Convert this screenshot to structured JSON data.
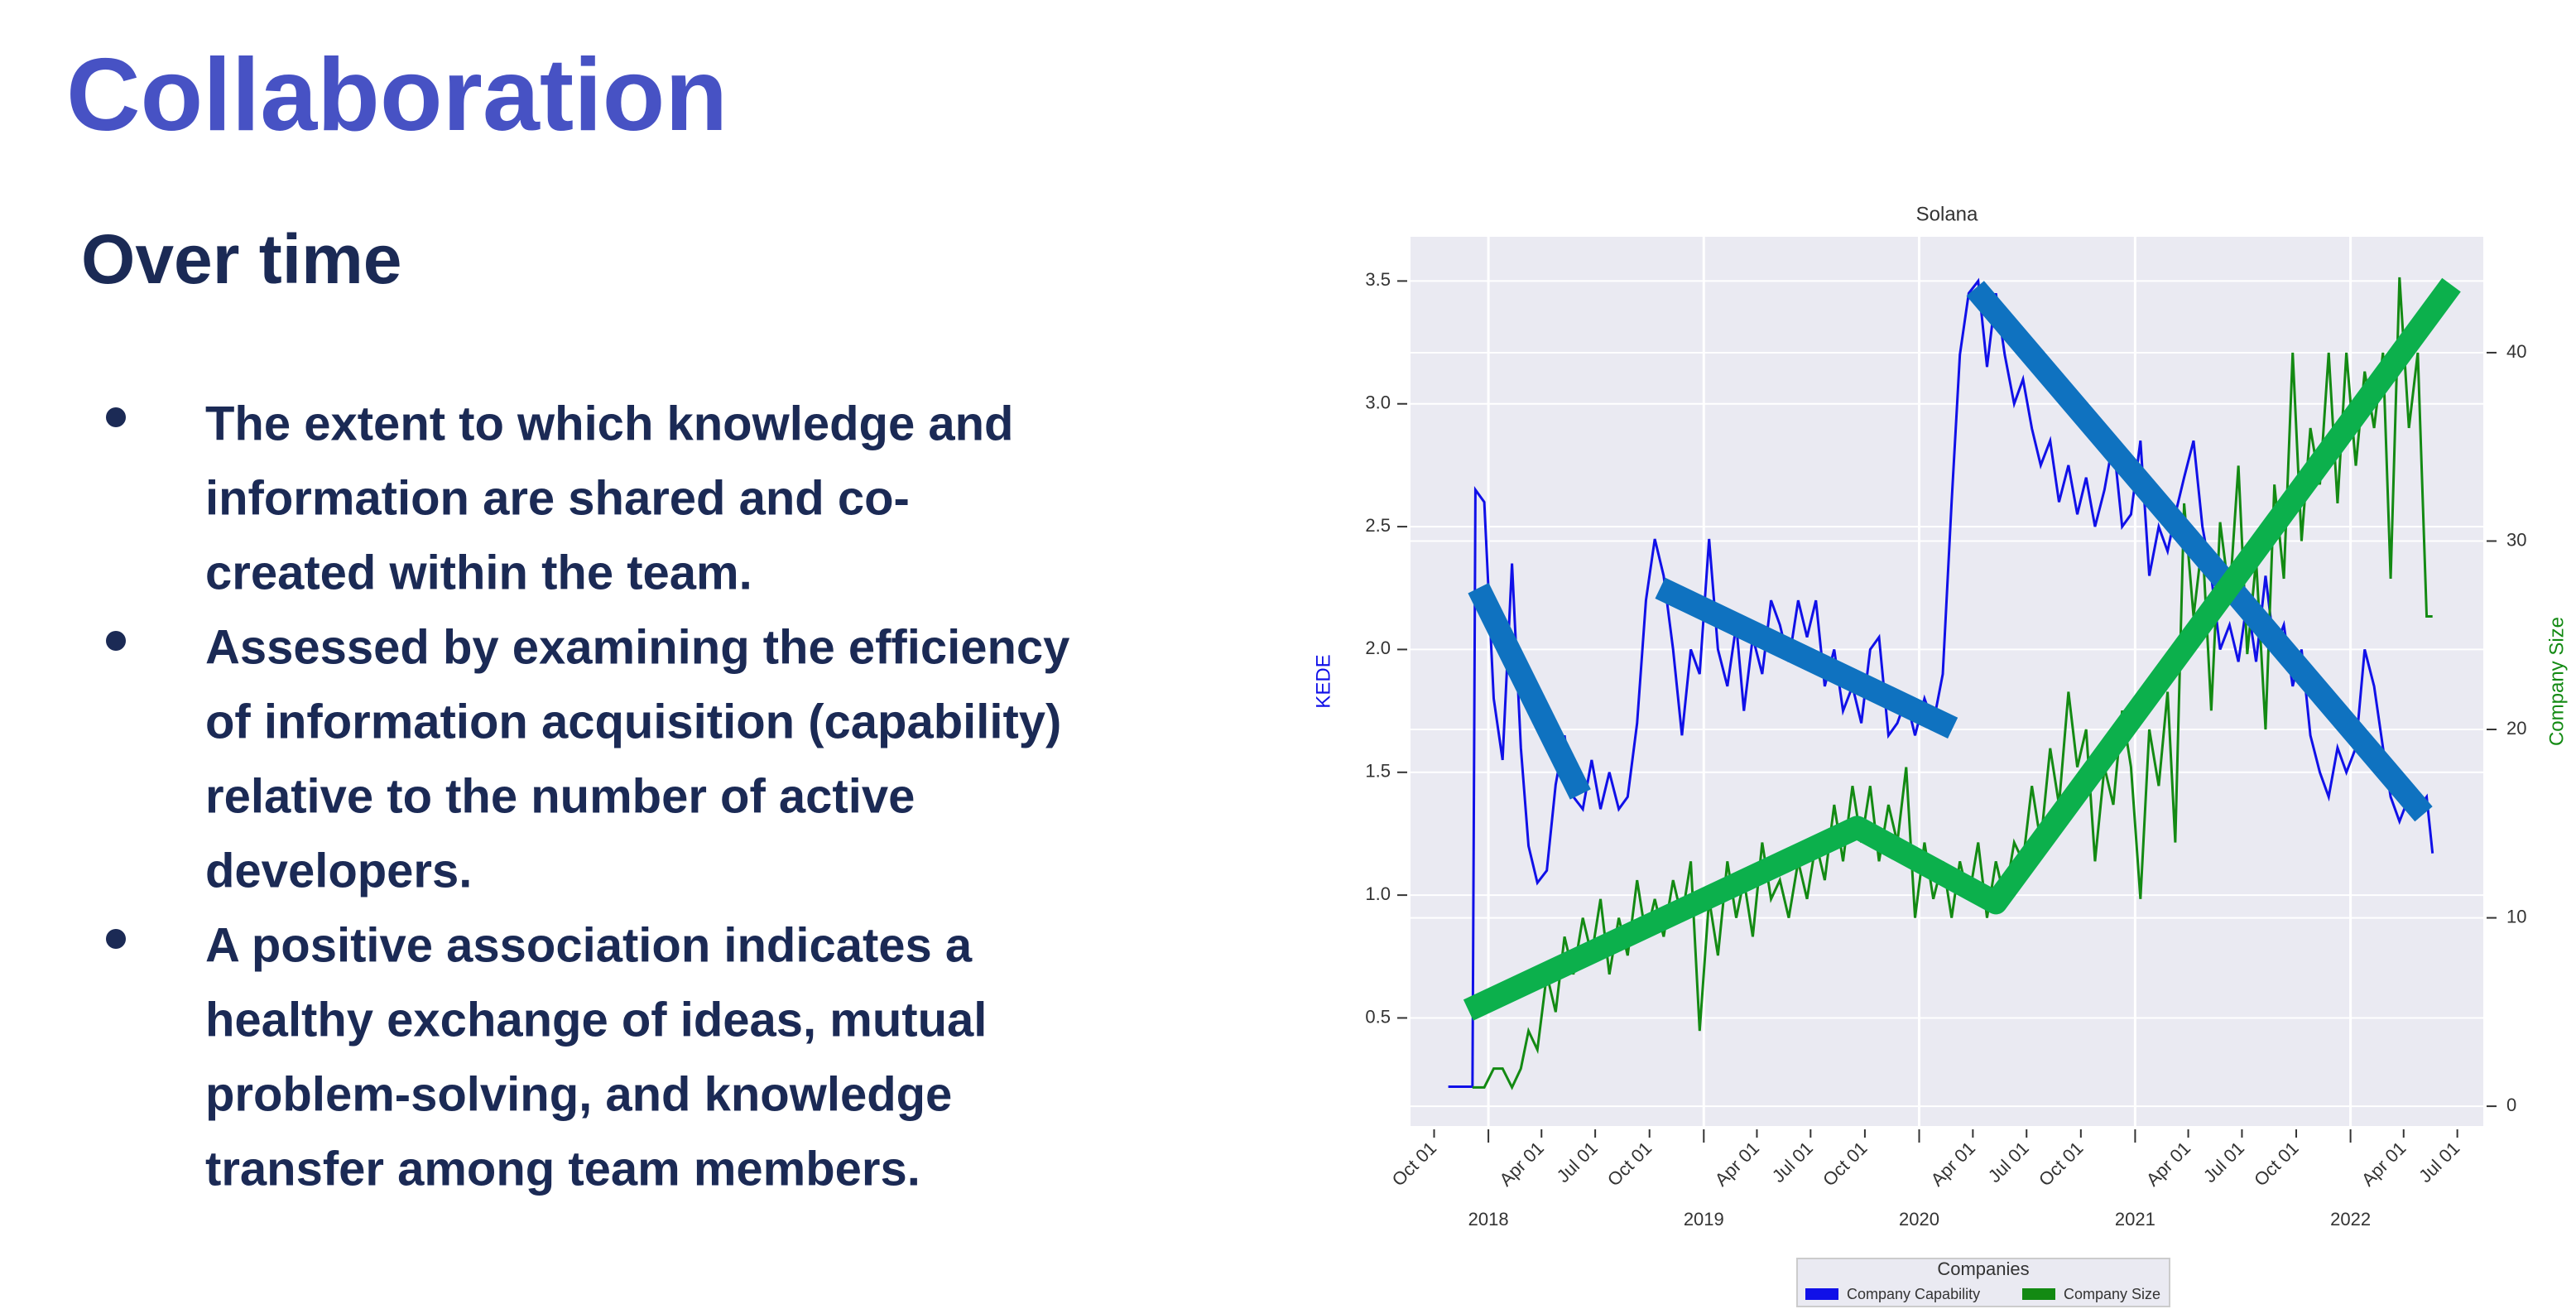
{
  "title": "Collaboration",
  "subtitle": "Over time",
  "bullets": [
    [
      "The extent to which knowledge and",
      "information are shared and co-",
      "created within the team."
    ],
    [
      "Assessed by examining the efficiency",
      "of information acquisition (capability)",
      "relative to the number of active",
      "developers."
    ],
    [
      "A positive association indicates a",
      "healthy exchange of ideas, mutual",
      "problem-solving, and knowledge",
      "transfer among team members."
    ]
  ],
  "chart_data": {
    "type": "line",
    "title": "Solana",
    "ylabel": "KEDE",
    "y2label": "Company Size",
    "xlim": [
      "2017-08-22",
      "2022-08-14"
    ],
    "ylim": [
      0.06,
      3.68
    ],
    "y2lim": [
      -1.05,
      46.15
    ],
    "yticks": [
      0.5,
      {
        "value": 1,
        "label": "1.0"
      },
      1.5,
      {
        "value": 2,
        "label": "2.0"
      },
      2.5,
      {
        "value": 3,
        "label": "3.0"
      },
      3.5
    ],
    "y2ticks": [
      0,
      10,
      20,
      30,
      40
    ],
    "xticks": [
      {
        "value": "2017-10-01",
        "label": "Oct 01"
      },
      {
        "value": "2018-04-01",
        "label": "Apr 01"
      },
      {
        "value": "2018-07-01",
        "label": "Jul 01"
      },
      {
        "value": "2018-10-01",
        "label": "Oct 01"
      },
      {
        "value": "2019-04-01",
        "label": "Apr 01"
      },
      {
        "value": "2019-07-01",
        "label": "Jul 01"
      },
      {
        "value": "2019-10-01",
        "label": "Oct 01"
      },
      {
        "value": "2020-04-01",
        "label": "Apr 01"
      },
      {
        "value": "2020-07-01",
        "label": "Jul 01"
      },
      {
        "value": "2020-10-01",
        "label": "Oct 01"
      },
      {
        "value": "2021-04-01",
        "label": "Apr 01"
      },
      {
        "value": "2021-07-01",
        "label": "Jul 01"
      },
      {
        "value": "2021-10-01",
        "label": "Oct 01"
      },
      {
        "value": "2022-04-01",
        "label": "Apr 01"
      },
      {
        "value": "2022-07-01",
        "label": "Jul 01"
      }
    ],
    "xticks_year": [
      {
        "value": "2018-01-01",
        "label": "2018"
      },
      {
        "value": "2019-01-01",
        "label": "2019"
      },
      {
        "value": "2020-01-01",
        "label": "2020"
      },
      {
        "value": "2021-01-01",
        "label": "2021"
      },
      {
        "value": "2022-01-01",
        "label": "2022"
      }
    ],
    "grid": true,
    "legend": "lower center",
    "legend_title": "Companies",
    "x": [
      "2017-10-25",
      "2017-12-05",
      "2017-12-10",
      "2017-12-25",
      "2018-01-10",
      "2018-01-25",
      "2018-02-10",
      "2018-02-25",
      "2018-03-10",
      "2018-03-25",
      "2018-04-10",
      "2018-04-25",
      "2018-05-10",
      "2018-05-25",
      "2018-06-10",
      "2018-06-25",
      "2018-07-10",
      "2018-07-25",
      "2018-08-10",
      "2018-08-25",
      "2018-09-10",
      "2018-09-25",
      "2018-10-10",
      "2018-10-25",
      "2018-11-10",
      "2018-11-25",
      "2018-12-10",
      "2018-12-25",
      "2019-01-10",
      "2019-01-25",
      "2019-02-10",
      "2019-02-25",
      "2019-03-10",
      "2019-03-25",
      "2019-04-10",
      "2019-04-25",
      "2019-05-10",
      "2019-05-25",
      "2019-06-10",
      "2019-06-25",
      "2019-07-10",
      "2019-07-25",
      "2019-08-10",
      "2019-08-25",
      "2019-09-10",
      "2019-09-25",
      "2019-10-10",
      "2019-10-25",
      "2019-11-10",
      "2019-11-25",
      "2019-12-10",
      "2019-12-25",
      "2020-01-10",
      "2020-01-25",
      "2020-02-10",
      "2020-02-25",
      "2020-03-10",
      "2020-03-25",
      "2020-04-10",
      "2020-04-25",
      "2020-05-10",
      "2020-05-25",
      "2020-06-10",
      "2020-06-25",
      "2020-07-10",
      "2020-07-25",
      "2020-08-10",
      "2020-08-25",
      "2020-09-10",
      "2020-09-25",
      "2020-10-10",
      "2020-10-25",
      "2020-11-10",
      "2020-11-25",
      "2020-12-10",
      "2020-12-25",
      "2021-01-10",
      "2021-01-25",
      "2021-02-10",
      "2021-02-25",
      "2021-03-10",
      "2021-03-25",
      "2021-04-10",
      "2021-04-25",
      "2021-05-10",
      "2021-05-25",
      "2021-06-10",
      "2021-06-25",
      "2021-07-10",
      "2021-07-25",
      "2021-08-10",
      "2021-08-25",
      "2021-09-10",
      "2021-09-25",
      "2021-10-10",
      "2021-10-25",
      "2021-11-10",
      "2021-11-25",
      "2021-12-10",
      "2021-12-25",
      "2022-01-10",
      "2022-01-25",
      "2022-02-10",
      "2022-02-25",
      "2022-03-10",
      "2022-03-25",
      "2022-04-10",
      "2022-04-25",
      "2022-05-10",
      "2022-05-20"
    ],
    "series": [
      {
        "name": "Company Capability",
        "color": "#1010e8",
        "values": [
          0.22,
          0.22,
          2.65,
          2.6,
          1.8,
          1.55,
          2.35,
          1.6,
          1.2,
          1.05,
          1.1,
          1.45,
          1.65,
          1.4,
          1.35,
          1.55,
          1.35,
          1.5,
          1.35,
          1.4,
          1.7,
          2.2,
          2.45,
          2.3,
          2.0,
          1.65,
          2.0,
          1.9,
          2.45,
          2.0,
          1.85,
          2.1,
          1.75,
          2.05,
          1.9,
          2.2,
          2.1,
          1.95,
          2.2,
          2.05,
          2.2,
          1.85,
          2.0,
          1.75,
          1.85,
          1.7,
          2.0,
          2.05,
          1.65,
          1.7,
          1.8,
          1.65,
          1.8,
          1.7,
          1.9,
          2.6,
          3.2,
          3.45,
          3.5,
          3.15,
          3.45,
          3.2,
          3.0,
          3.1,
          2.9,
          2.75,
          2.85,
          2.6,
          2.75,
          2.55,
          2.7,
          2.5,
          2.65,
          2.85,
          2.5,
          2.55,
          2.85,
          2.3,
          2.5,
          2.4,
          2.55,
          2.7,
          2.85,
          2.5,
          2.3,
          2.0,
          2.1,
          1.95,
          2.2,
          1.95,
          2.3,
          2.0,
          2.1,
          1.85,
          2.0,
          1.65,
          1.5,
          1.4,
          1.6,
          1.5,
          1.6,
          2.0,
          1.85,
          1.6,
          1.4,
          1.3,
          1.4,
          1.35,
          1.4,
          1.17
        ]
      },
      {
        "name": "Company Size",
        "color": "#138a13",
        "axis": "y2",
        "values": [
          null,
          1,
          1,
          1,
          2,
          2,
          1,
          2,
          4,
          3,
          7,
          5,
          9,
          7,
          10,
          8,
          11,
          7,
          10,
          8,
          12,
          9,
          11,
          9,
          12,
          10,
          13,
          4,
          11,
          8,
          13,
          10,
          12,
          9,
          14,
          11,
          12,
          10,
          13,
          11,
          14,
          12,
          16,
          13,
          17,
          14,
          17,
          13,
          16,
          14,
          18,
          10,
          14,
          11,
          13,
          10,
          13,
          11,
          14,
          10,
          13,
          11,
          14,
          13,
          17,
          14,
          19,
          16,
          22,
          18,
          20,
          13,
          18,
          16,
          21,
          18,
          11,
          20,
          17,
          22,
          14,
          32,
          26,
          30,
          21,
          31,
          27,
          34,
          24,
          29,
          20,
          33,
          28,
          40,
          30,
          36,
          33,
          40,
          32,
          40,
          34,
          39,
          36,
          40,
          28,
          44,
          36,
          40,
          26,
          26
        ]
      }
    ],
    "trend_lines": [
      {
        "color": "#0f72c0",
        "x": [
          "2017-12-15",
          "2018-06-06"
        ],
        "values": [
          2.25,
          1.41
        ]
      },
      {
        "color": "#0f72c0",
        "x": [
          "2018-10-19",
          "2020-02-27"
        ],
        "values": [
          2.25,
          1.68
        ]
      },
      {
        "color": "#0f72c0",
        "x": [
          "2020-04-05",
          "2022-05-05"
        ],
        "values": [
          3.47,
          1.33
        ]
      },
      {
        "color": "#0cb04c",
        "axis": "y2",
        "x": [
          "2017-11-28",
          "2019-09-18",
          "2020-05-10",
          "2022-06-21"
        ],
        "values": [
          5.1,
          14.8,
          10.8,
          43.6
        ]
      }
    ]
  }
}
